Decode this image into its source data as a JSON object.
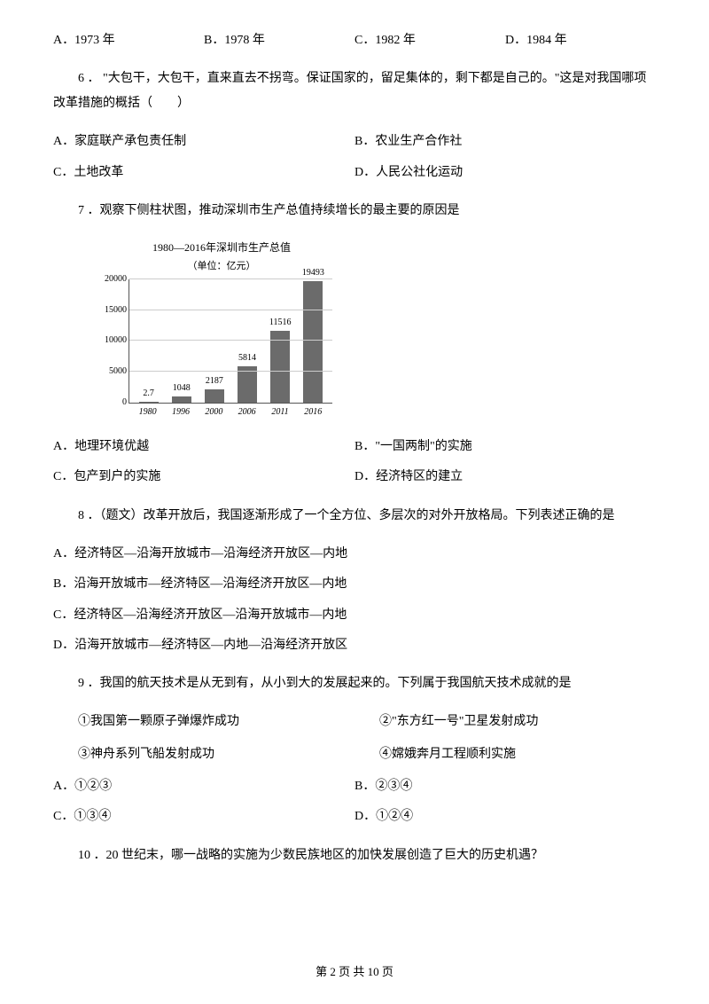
{
  "q5_options": {
    "a": "A．1973 年",
    "b": "B．1978 年",
    "c": "C．1982 年",
    "d": "D．1984 年"
  },
  "q6": {
    "text": "6 ． \"大包干，大包干，直来直去不拐弯。保证国家的，留足集体的，剩下都是自己的。\"这是对我国哪项改革措施的概括（　　）",
    "a": "A．家庭联产承包责任制",
    "b": "B．农业生产合作社",
    "c": "C．土地改革",
    "d": "D．人民公社化运动"
  },
  "q7": {
    "text": "7 ．观察下侧柱状图，推动深圳市生产总值持续增长的最主要的原因是",
    "a": "A．地理环境优越",
    "b": "B．\"一国两制\"的实施",
    "c": "C．包产到户的实施",
    "d": "D．经济特区的建立"
  },
  "chart": {
    "title": "1980—2016年深圳市生产总值",
    "subtitle": "（单位：亿元）",
    "y_max": 20000,
    "y_ticks": [
      0,
      5000,
      10000,
      15000,
      20000
    ],
    "bar_color": "#6b6b6b",
    "bars": [
      {
        "year": "1980",
        "value": 2.7,
        "label": "2.7",
        "height_pct": 1
      },
      {
        "year": "1996",
        "value": 1048,
        "label": "1048",
        "height_pct": 5.2
      },
      {
        "year": "2000",
        "value": 2187,
        "label": "2187",
        "height_pct": 10.9
      },
      {
        "year": "2006",
        "value": 5814,
        "label": "5814",
        "height_pct": 29.1
      },
      {
        "year": "2011",
        "value": 11516,
        "label": "11516",
        "height_pct": 57.6
      },
      {
        "year": "2016",
        "value": 19493,
        "label": "19493",
        "height_pct": 97.5
      }
    ]
  },
  "q8": {
    "text": "8 ．（题文）改革开放后，我国逐渐形成了一个全方位、多层次的对外开放格局。下列表述正确的是",
    "a": "A．经济特区—沿海开放城市—沿海经济开放区—内地",
    "b": "B．沿海开放城市—经济特区—沿海经济开放区—内地",
    "c": "C．经济特区—沿海经济开放区—沿海开放城市—内地",
    "d": "D．沿海开放城市—经济特区—内地—沿海经济开放区"
  },
  "q9": {
    "text": "9 ．我国的航天技术是从无到有，从小到大的发展起来的。下列属于我国航天技术成就的是",
    "s1": "①我国第一颗原子弹爆炸成功",
    "s2": "②\"东方红一号\"卫星发射成功",
    "s3": "③神舟系列飞船发射成功",
    "s4": "④嫦娥奔月工程顺利实施",
    "a": "A．①②③",
    "b": "B．②③④",
    "c": "C．①③④",
    "d": "D．①②④"
  },
  "q10": {
    "text": "10 ．20 世纪末，哪一战略的实施为少数民族地区的加快发展创造了巨大的历史机遇？"
  },
  "footer": "第 2 页 共 10 页"
}
